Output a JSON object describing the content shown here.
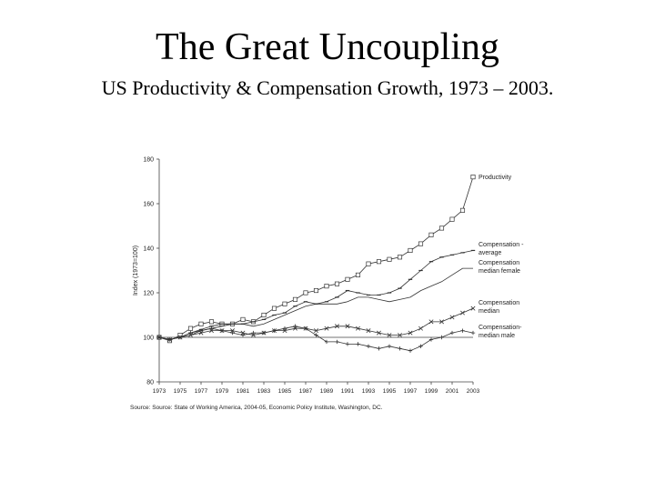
{
  "slide": {
    "title": "The Great Uncoupling",
    "subtitle": "US Productivity & Compensation Growth, 1973 – 2003."
  },
  "chart_data": {
    "type": "line",
    "title": "",
    "ylabel": "Index (1973=100)",
    "xlabel": "",
    "source": "Source:  Source:  State of Working America, 2004-05, Economic Policy Institute, Washington, DC.",
    "x": [
      1973,
      1974,
      1975,
      1976,
      1977,
      1978,
      1979,
      1980,
      1981,
      1982,
      1983,
      1984,
      1985,
      1986,
      1987,
      1988,
      1989,
      1990,
      1991,
      1992,
      1993,
      1994,
      1995,
      1996,
      1997,
      1998,
      1999,
      2000,
      2001,
      2002,
      2003
    ],
    "x_tick_labels": [
      "1973",
      "1975",
      "1977",
      "1979",
      "1981",
      "1983",
      "1985",
      "1987",
      "1989",
      "1991",
      "1993",
      "1995",
      "1997",
      "1999",
      "2001",
      "2003"
    ],
    "x_tick_values": [
      1973,
      1975,
      1977,
      1979,
      1981,
      1983,
      1985,
      1987,
      1989,
      1991,
      1993,
      1995,
      1997,
      1999,
      2001,
      2003
    ],
    "ylim": [
      80,
      180
    ],
    "y_ticks": [
      80,
      100,
      120,
      140,
      160,
      180
    ],
    "y_tick_labels": [
      "80",
      "100",
      "120",
      "140",
      "160",
      "180"
    ],
    "xlim": [
      1973,
      2003
    ],
    "reference_line": 100,
    "colors": {
      "lines": "#333333",
      "axis": "#444444",
      "text": "#222222"
    },
    "series": [
      {
        "name": "Productivity",
        "legend_lines": [
          "Productivity"
        ],
        "marker": "square",
        "values": [
          100,
          98.5,
          101,
          104,
          106,
          107,
          106,
          106,
          108,
          107,
          110,
          113,
          115,
          117,
          120,
          121,
          123,
          124,
          126,
          128,
          133,
          134,
          135,
          136,
          139,
          142,
          146,
          149,
          153,
          157,
          172
        ]
      },
      {
        "name": "Compensation - average",
        "legend_lines": [
          "Compensation -",
          "average"
        ],
        "marker": "dash",
        "values": [
          100,
          99,
          100,
          102,
          103.5,
          105,
          106,
          106,
          106,
          107,
          108,
          110,
          111,
          114,
          116,
          115,
          116,
          118,
          121,
          120,
          119,
          119,
          120,
          122,
          126,
          130,
          134,
          136,
          137,
          138,
          139
        ]
      },
      {
        "name": "Compensation median female",
        "legend_lines": [
          "Compensation",
          "median female"
        ],
        "marker": "none",
        "values": [
          100,
          99,
          100,
          101,
          103,
          104,
          105,
          106,
          106,
          105,
          106,
          108,
          110,
          112,
          114,
          115,
          115,
          115,
          116,
          118,
          118,
          117,
          116,
          117,
          118,
          121,
          123,
          125,
          128,
          131,
          131
        ]
      },
      {
        "name": "Compensation median",
        "legend_lines": [
          "Compensation",
          "median"
        ],
        "marker": "x",
        "values": [
          100,
          99,
          100,
          101,
          102,
          103,
          103,
          103,
          102,
          101,
          102,
          103,
          103,
          104,
          104,
          103,
          104,
          105,
          105,
          104,
          103,
          102,
          101,
          101,
          102,
          104,
          107,
          107,
          109,
          111,
          113
        ]
      },
      {
        "name": "Compensation-median male",
        "legend_lines": [
          "Compensation-",
          "median male"
        ],
        "marker": "plus",
        "values": [
          100,
          99,
          100,
          102,
          103,
          104,
          103,
          102,
          101,
          102,
          102,
          103,
          104,
          105,
          104,
          101,
          98,
          98,
          97,
          97,
          96,
          95,
          96,
          95,
          94,
          96,
          99,
          100,
          102,
          103,
          102
        ]
      }
    ]
  }
}
